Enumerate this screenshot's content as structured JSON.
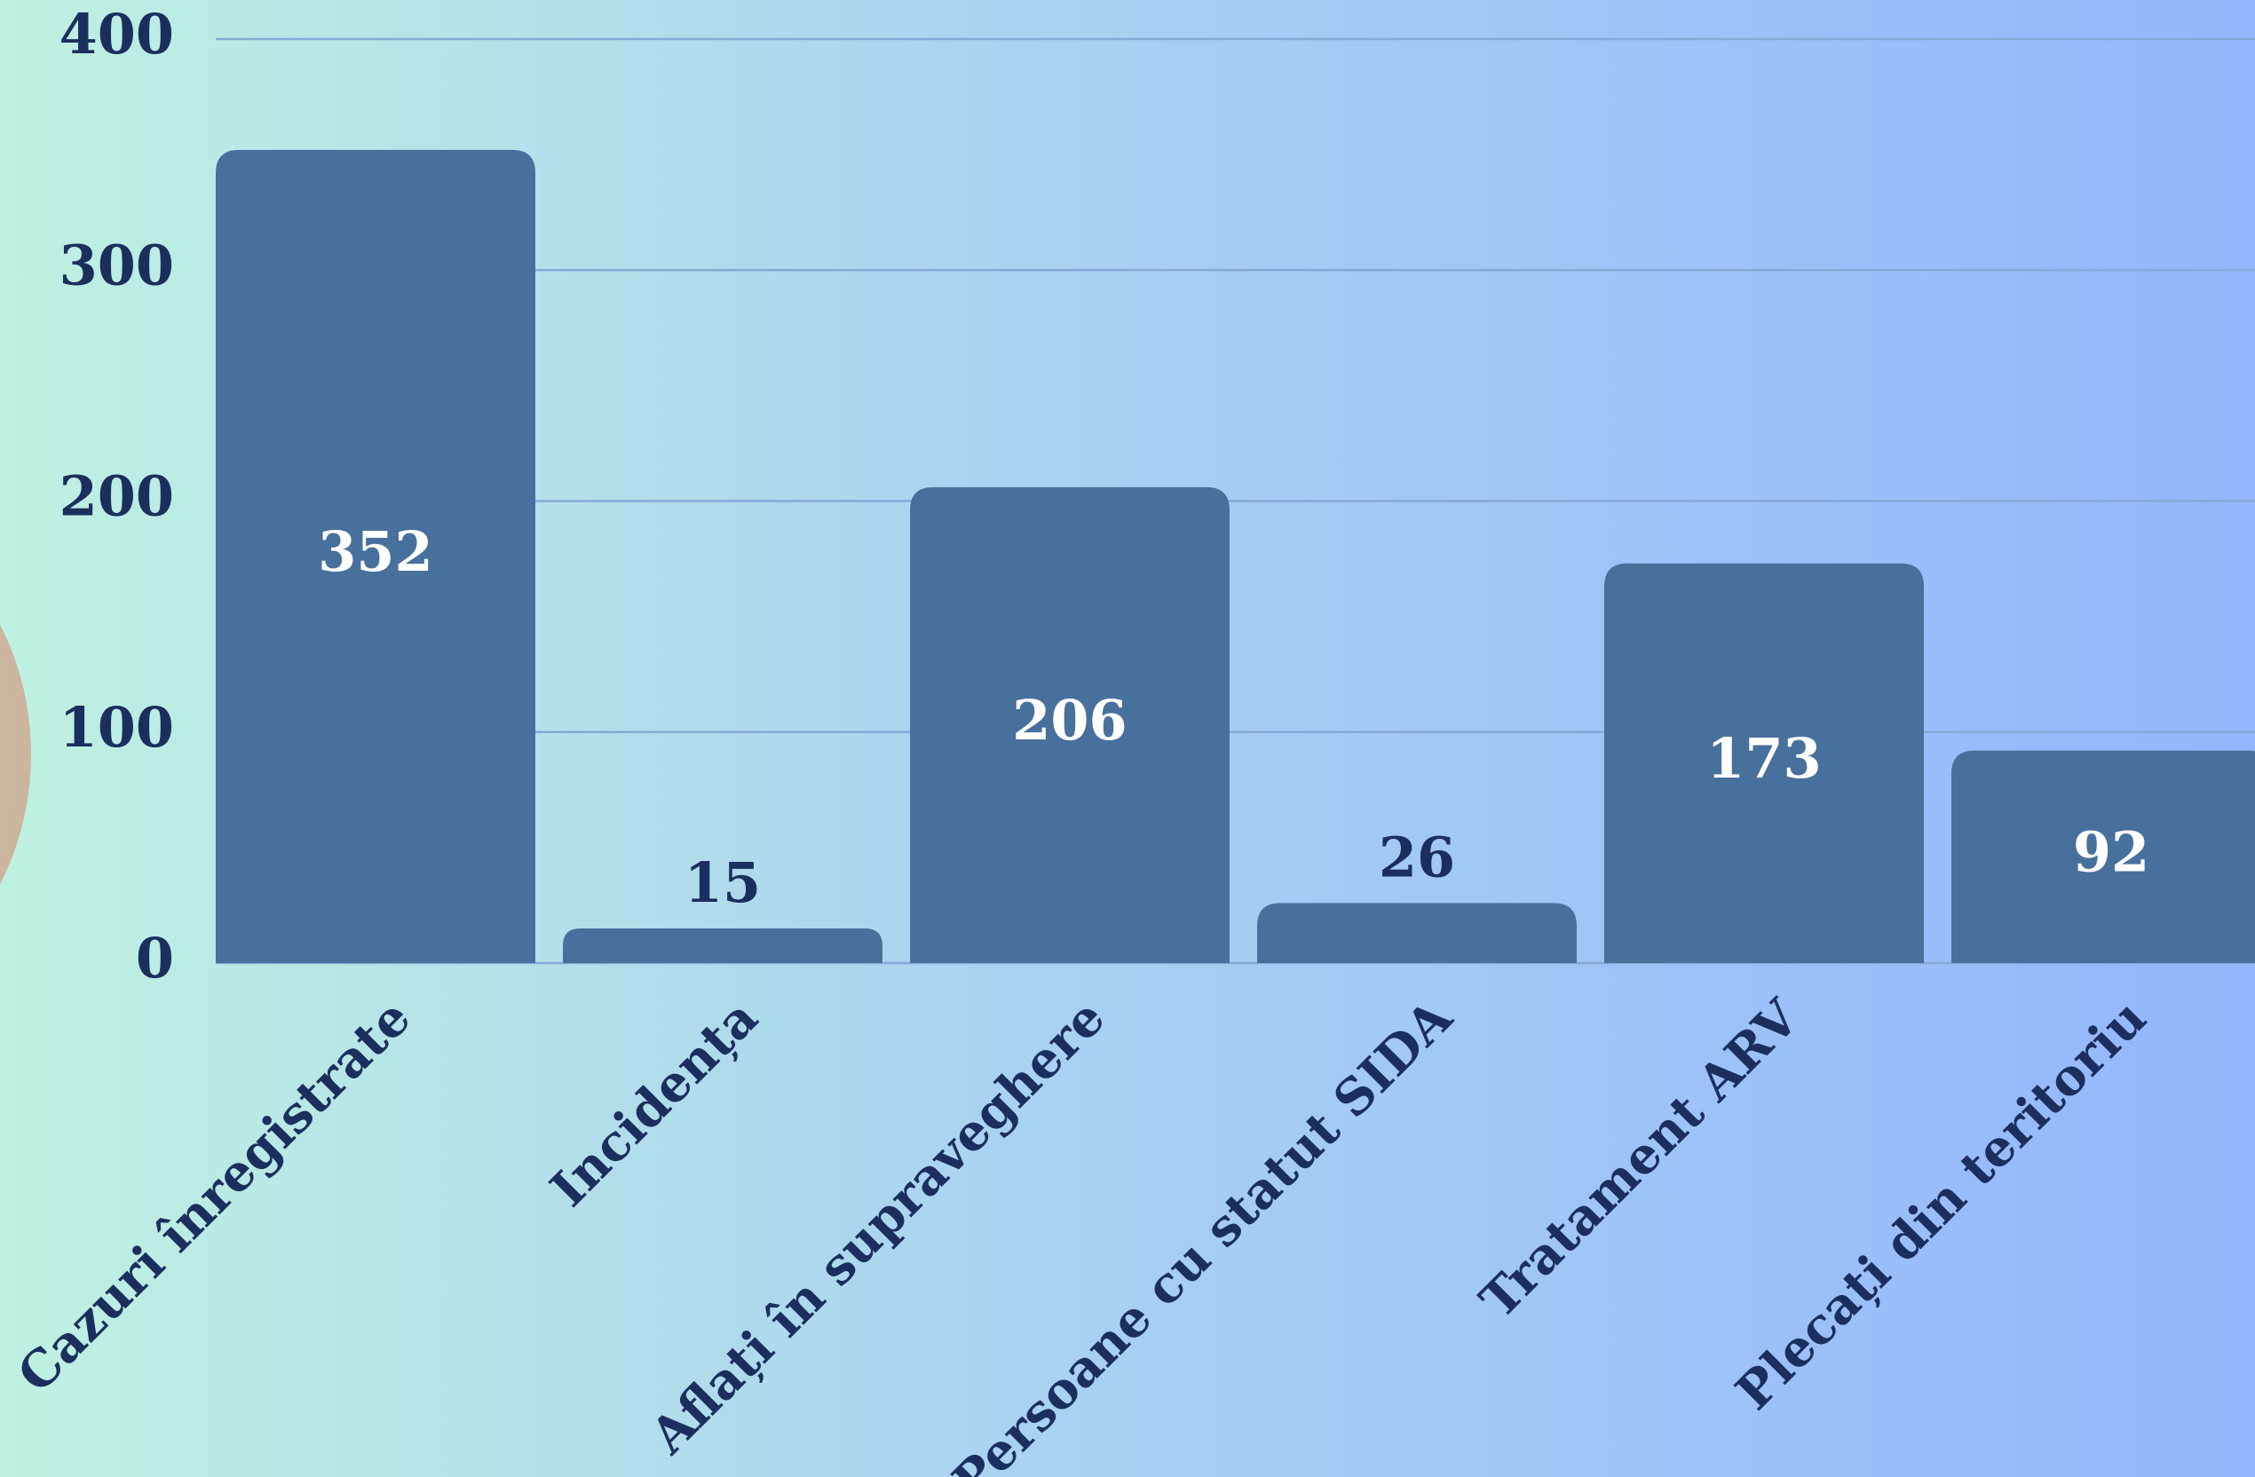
{
  "chart_data": {
    "type": "bar",
    "categories": [
      "Cazuri înregistrate",
      "Incidența",
      "Aflați în supraveghere",
      "Persoane cu statut SIDA",
      "Tratament ARV",
      "Plecați din teritoriu"
    ],
    "values": [
      352,
      15,
      206,
      26,
      173,
      92
    ],
    "color": "#48709c",
    "ylim": [
      0,
      400
    ],
    "yticks": [
      0,
      100,
      200,
      300,
      400
    ],
    "grid": true
  }
}
